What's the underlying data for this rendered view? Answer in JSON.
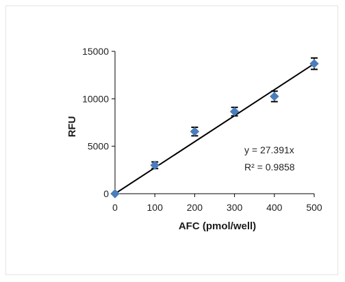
{
  "chart_data": {
    "type": "scatter",
    "xlabel": "AFC (pmol/well)",
    "ylabel": "RFU",
    "x_ticks": [
      "0",
      "100",
      "200",
      "300",
      "400",
      "500"
    ],
    "y_ticks": [
      "0",
      "5000",
      "10000",
      "15000"
    ],
    "xlim": [
      0,
      500
    ],
    "ylim": [
      0,
      15000
    ],
    "grid": false,
    "series": [
      {
        "x": [
          0,
          100,
          200,
          300,
          400,
          500
        ],
        "y": [
          0,
          3000,
          6550,
          8650,
          10250,
          13700
        ],
        "error": [
          0,
          350,
          450,
          450,
          550,
          600
        ],
        "color": "#4a7ebb"
      }
    ],
    "trendline": {
      "slope": 27.391,
      "intercept": 0,
      "color": "#000000"
    },
    "equation": "y = 27.391x",
    "r_squared": "R² = 0.9858"
  }
}
